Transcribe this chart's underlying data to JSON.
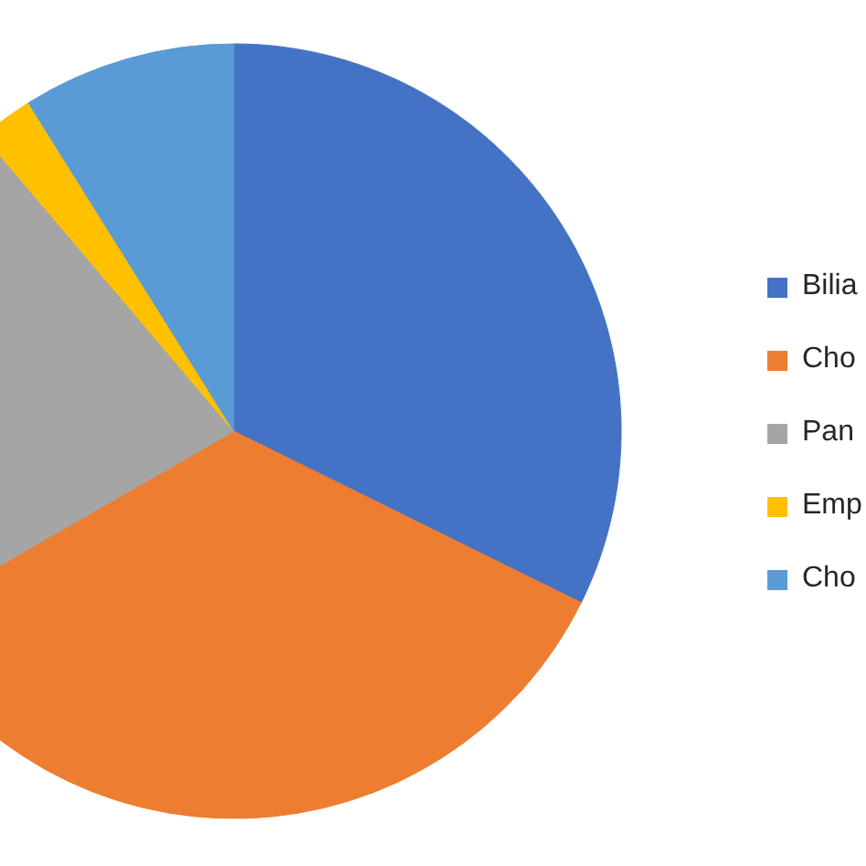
{
  "chart_data": {
    "type": "pie",
    "categories": [
      "Bilia",
      "Cho",
      "Pan",
      "Emp",
      "Cho"
    ],
    "values": [
      32.3,
      34.4,
      22.1,
      2.3,
      8.9
    ],
    "colors": [
      "#4472c4",
      "#ed7d31",
      "#a5a5a5",
      "#ffc000",
      "#5b9bd5"
    ],
    "legend": "right"
  }
}
